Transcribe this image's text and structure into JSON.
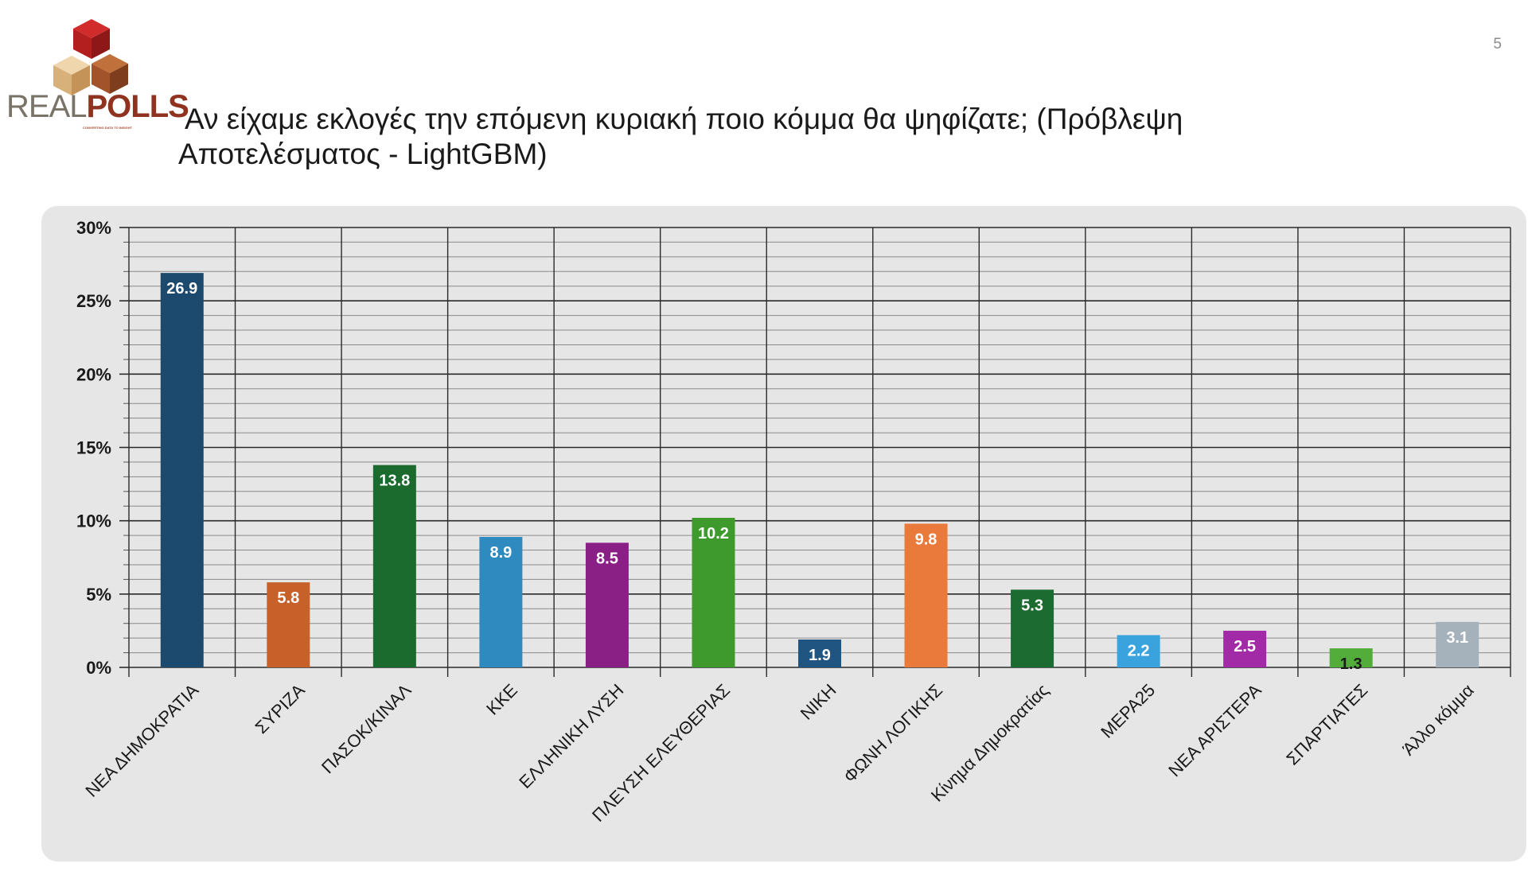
{
  "logo": {
    "word_light": "REAL",
    "word_bold": "POLLS",
    "tagline": "CONVERTING DATA TO INSIGHT"
  },
  "page_number": "5",
  "title": "Αν είχαμε εκλογές την επόμενη κυριακή ποιο κόμμα θα ψηφίζατε; (Πρόβλεψη Αποτελέσματος - LightGBM)",
  "title_lines": [
    "Αν είχαμε εκλογές την επόμενη κυριακή ποιο κόμμα θα ψηφίζατε; (Πρόβλεψη",
    "Αποτελέσματος - LightGBM)"
  ],
  "chart_data": {
    "type": "bar",
    "categories": [
      "ΝΕΑ ΔΗΜΟΚΡΑΤΙΑ",
      "ΣΥΡΙΖΑ",
      "ΠΑΣΟΚ/ΚΙΝΑΛ",
      "ΚΚΕ",
      "ΕΛΛΗΝΙΚΗ ΛΥΣΗ",
      "ΠΛΕΥΣΗ ΕΛΕΥΘΕΡΙΑΣ",
      "ΝΙΚΗ",
      "ΦΩΝΗ ΛΟΓΙΚΗΣ",
      "Κίνημα Δημοκρατίας",
      "ΜΕΡΑ25",
      "ΝΕΑ ΑΡΙΣΤΕΡΑ",
      "ΣΠΑΡΤΙΑΤΕΣ",
      "Άλλο κόμμα"
    ],
    "values": [
      26.9,
      5.8,
      13.8,
      8.9,
      8.5,
      10.2,
      1.9,
      9.8,
      5.3,
      2.2,
      2.5,
      1.3,
      3.1
    ],
    "value_labels": [
      "26.9",
      "5.8",
      "13.8",
      "8.9",
      "8.5",
      "10.2",
      "1.9",
      "9.8",
      "5.3",
      "2.2",
      "2.5",
      "1.3",
      "3.1"
    ],
    "colors": [
      "#1c4a6e",
      "#c8602a",
      "#1b6a2e",
      "#2f8ac0",
      "#8a1f86",
      "#3e9a2d",
      "#1f5580",
      "#ea7a3c",
      "#1c6b30",
      "#3aa3de",
      "#a32aa6",
      "#52ad3b",
      "#a5b1bb"
    ],
    "label_colors": [
      "#ffffff",
      "#ffffff",
      "#ffffff",
      "#ffffff",
      "#ffffff",
      "#ffffff",
      "#ffffff",
      "#ffffff",
      "#ffffff",
      "#ffffff",
      "#ffffff",
      "#1a1a1a",
      "#ffffff"
    ],
    "ylim": [
      0,
      30
    ],
    "yticks": [
      0,
      5,
      10,
      15,
      20,
      25,
      30
    ],
    "ytick_labels": [
      "0%",
      "5%",
      "10%",
      "15%",
      "20%",
      "25%",
      "30%"
    ],
    "minor_step": 1,
    "grid": true,
    "xlabel": "",
    "ylabel": ""
  }
}
